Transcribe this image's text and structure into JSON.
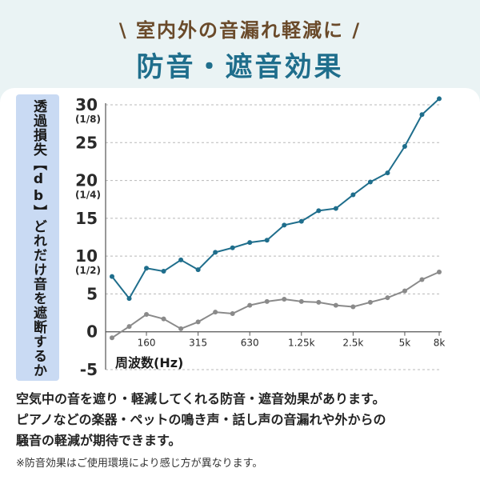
{
  "header": {
    "subtitle": "\\ 室内外の音漏れ軽減に /",
    "title": "防音・遮音効果"
  },
  "chart_data": {
    "type": "line",
    "ylabel": "透過損失【db】どれだけ音を遮断するか",
    "xlabel": "周波数(Hz)",
    "ylim": [
      -5,
      30
    ],
    "yticks": [
      {
        "value": 30,
        "label": "30",
        "sub": "(1/8)"
      },
      {
        "value": 25,
        "label": "25",
        "sub": ""
      },
      {
        "value": 20,
        "label": "20",
        "sub": "(1/4)"
      },
      {
        "value": 15,
        "label": "15",
        "sub": ""
      },
      {
        "value": 10,
        "label": "10",
        "sub": "(1/2)"
      },
      {
        "value": 5,
        "label": "5",
        "sub": ""
      },
      {
        "value": 0,
        "label": "0",
        "sub": ""
      },
      {
        "value": -5,
        "label": "-5",
        "sub": ""
      }
    ],
    "x_points": 19,
    "xticks": [
      {
        "index": 2,
        "label": "160"
      },
      {
        "index": 5,
        "label": "315"
      },
      {
        "index": 8,
        "label": "630"
      },
      {
        "index": 11,
        "label": "1.25k"
      },
      {
        "index": 14,
        "label": "2.5k"
      },
      {
        "index": 17,
        "label": "5k"
      },
      {
        "index": 19,
        "label": "8k"
      }
    ],
    "grid": "horizontal-dashed",
    "series": [
      {
        "color": "#1f6e8c",
        "values": [
          7.3,
          4.4,
          8.4,
          8.0,
          9.5,
          8.2,
          10.5,
          11.1,
          11.8,
          12.1,
          14.1,
          14.6,
          16.0,
          16.3,
          18.1,
          19.8,
          21.0,
          24.5,
          28.7,
          30.8
        ]
      },
      {
        "color": "#8a8a8a",
        "values": [
          -0.8,
          0.7,
          2.3,
          1.7,
          0.4,
          1.3,
          2.6,
          2.4,
          3.5,
          4.0,
          4.3,
          4.0,
          3.9,
          3.5,
          3.3,
          3.9,
          4.5,
          5.4,
          6.9,
          7.9
        ]
      }
    ]
  },
  "description": {
    "lines": [
      "空気中の音を遮り・軽減してくれる防音・遮音効果があります。",
      "ピアノなどの楽器・ペットの鳴き声・話し声の音漏れや外からの",
      "騒音の軽減が期待できます。"
    ],
    "note": "※防音効果はご使用環境により感じ方が異なります。"
  }
}
